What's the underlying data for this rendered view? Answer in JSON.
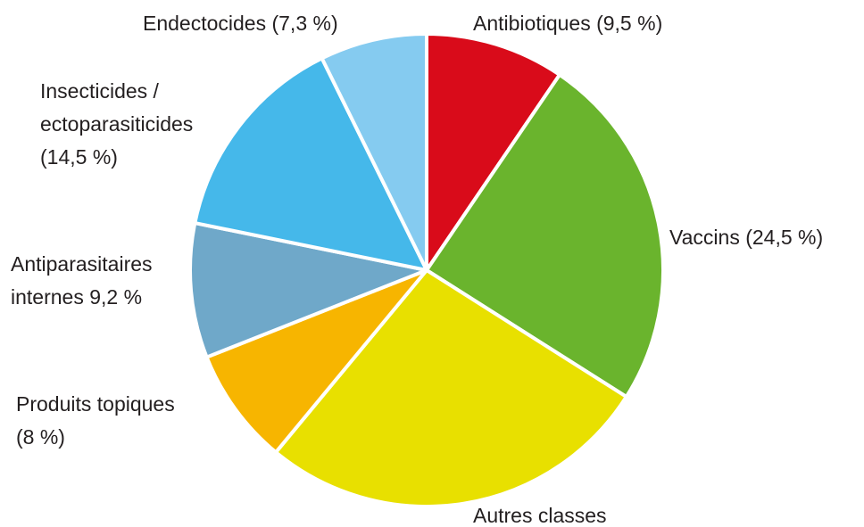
{
  "chart_data": {
    "type": "pie",
    "labels": [
      [
        "Antibiotiques (9,5 %)"
      ],
      [
        "Vaccins (24,5 %)"
      ],
      [
        "Autres classes"
      ],
      [
        "Produits topiques",
        "(8 %)"
      ],
      [
        "Antiparasitaires",
        "internes 9,2 %"
      ],
      [
        "Insecticides /",
        "ectoparasiticides",
        "(14,5 %)"
      ],
      [
        "Endectocides (7,3 %)"
      ]
    ],
    "values": [
      9.5,
      24.5,
      27,
      8,
      9.2,
      14.5,
      7.3
    ],
    "colors": [
      "#d90b1a",
      "#6ab42d",
      "#e8e000",
      "#f7b500",
      "#6fa8c9",
      "#45b8ea",
      "#85cbf0"
    ]
  }
}
